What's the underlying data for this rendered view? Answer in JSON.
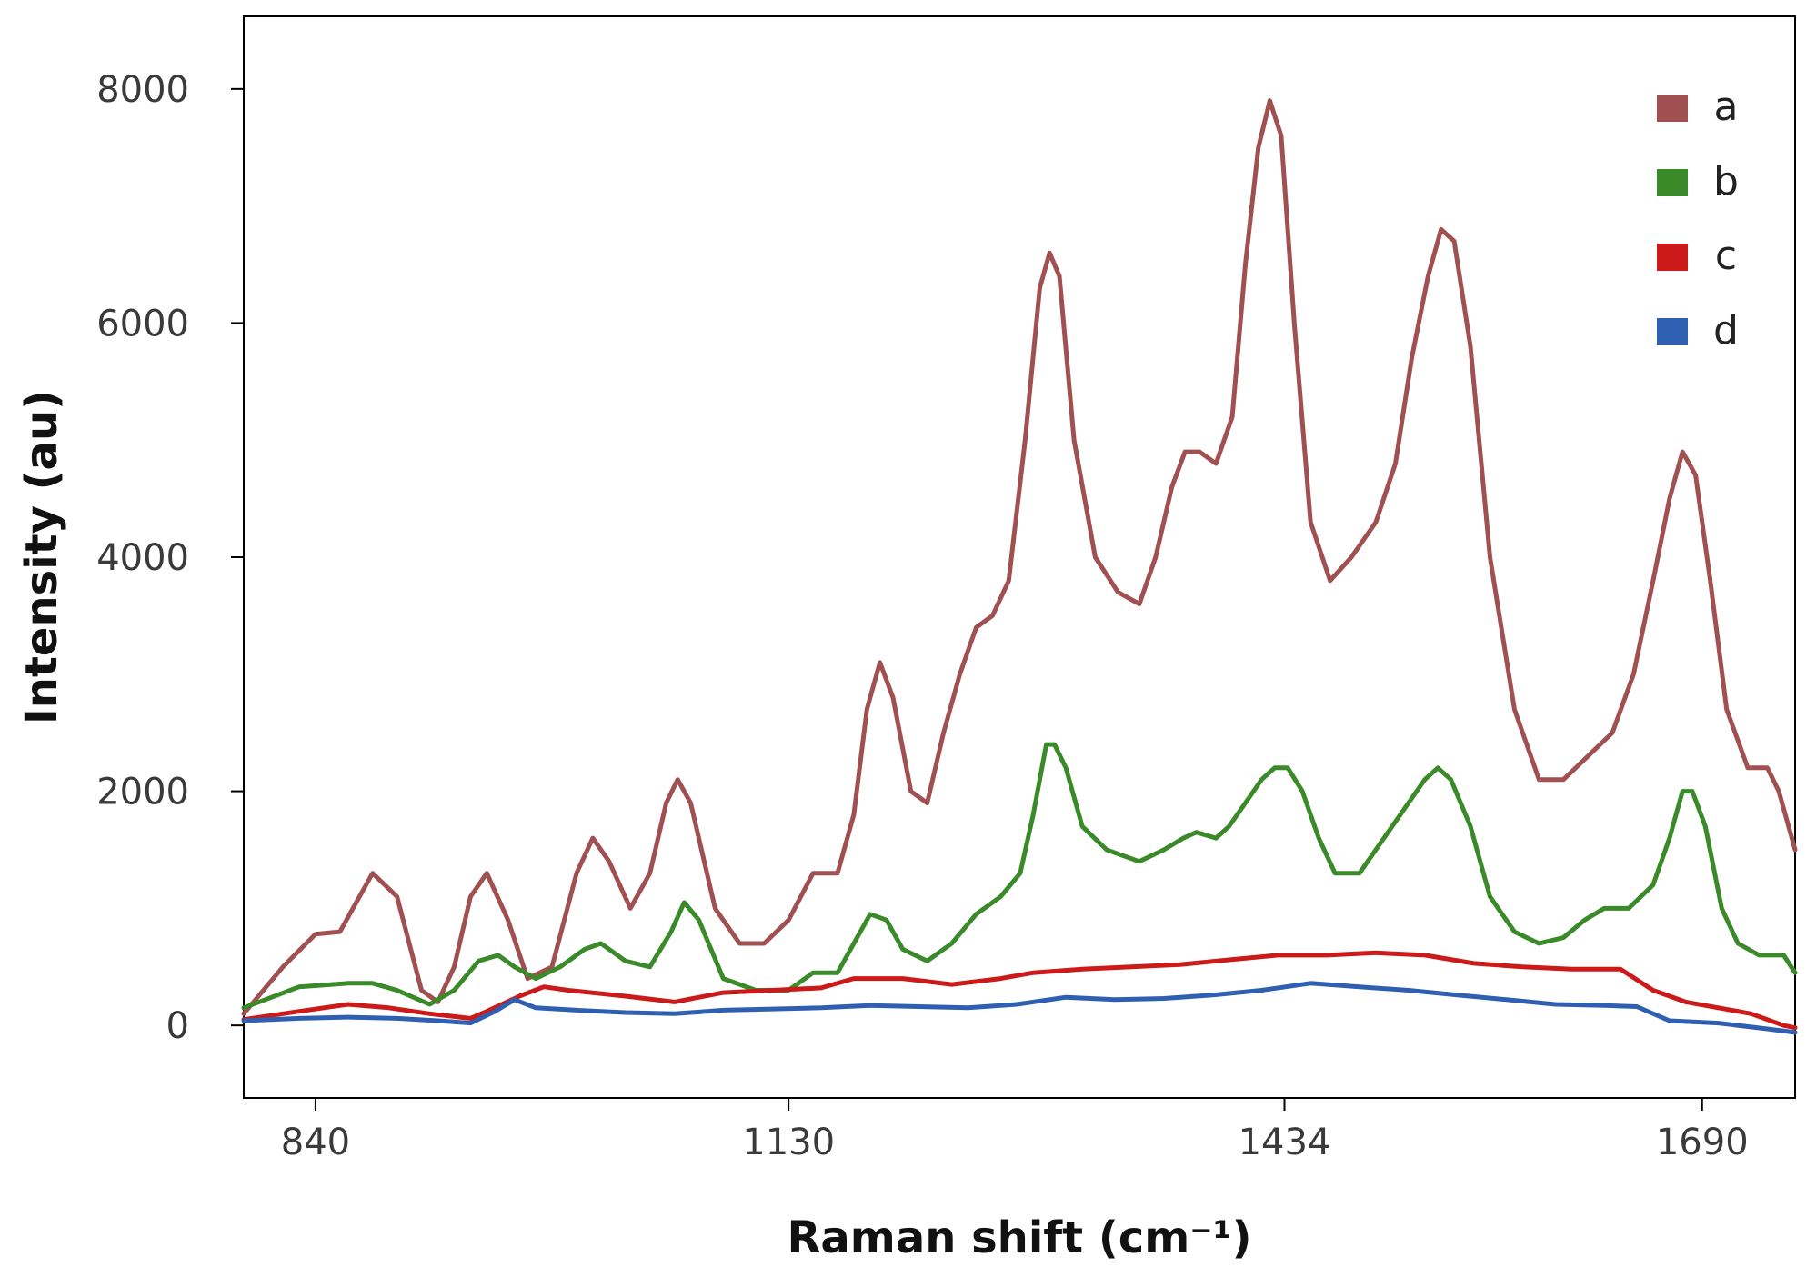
{
  "chart_data": {
    "type": "line",
    "title": "",
    "xlabel": "Raman shift (cm⁻¹)",
    "ylabel": "Intensity (au)",
    "xlim": [
      796,
      1747
    ],
    "ylim": [
      -620,
      8620
    ],
    "x_ticks": [
      840,
      1130,
      1434,
      1690
    ],
    "x_tick_labels": [
      "840",
      "1130",
      "1434",
      "1690"
    ],
    "y_ticks": [
      0,
      2000,
      4000,
      6000,
      8000
    ],
    "y_tick_labels": [
      "0",
      "2000",
      "4000",
      "6000",
      "8000"
    ],
    "grid": false,
    "legend_position": "top-right",
    "series": [
      {
        "name": "a",
        "color": "#a05050",
        "points": [
          [
            796,
            100
          ],
          [
            820,
            500
          ],
          [
            840,
            780
          ],
          [
            855,
            800
          ],
          [
            875,
            1300
          ],
          [
            890,
            1100
          ],
          [
            905,
            300
          ],
          [
            915,
            200
          ],
          [
            925,
            500
          ],
          [
            935,
            1100
          ],
          [
            945,
            1300
          ],
          [
            958,
            900
          ],
          [
            970,
            400
          ],
          [
            985,
            500
          ],
          [
            1000,
            1300
          ],
          [
            1010,
            1600
          ],
          [
            1020,
            1400
          ],
          [
            1033,
            1000
          ],
          [
            1045,
            1300
          ],
          [
            1055,
            1900
          ],
          [
            1062,
            2100
          ],
          [
            1070,
            1900
          ],
          [
            1085,
            1000
          ],
          [
            1100,
            700
          ],
          [
            1115,
            700
          ],
          [
            1130,
            900
          ],
          [
            1145,
            1300
          ],
          [
            1160,
            1300
          ],
          [
            1170,
            1800
          ],
          [
            1178,
            2700
          ],
          [
            1186,
            3100
          ],
          [
            1194,
            2800
          ],
          [
            1205,
            2000
          ],
          [
            1215,
            1900
          ],
          [
            1225,
            2500
          ],
          [
            1235,
            3000
          ],
          [
            1245,
            3400
          ],
          [
            1255,
            3500
          ],
          [
            1265,
            3800
          ],
          [
            1275,
            5000
          ],
          [
            1284,
            6300
          ],
          [
            1290,
            6600
          ],
          [
            1296,
            6400
          ],
          [
            1305,
            5000
          ],
          [
            1318,
            4000
          ],
          [
            1332,
            3700
          ],
          [
            1345,
            3600
          ],
          [
            1355,
            4000
          ],
          [
            1365,
            4600
          ],
          [
            1373,
            4900
          ],
          [
            1382,
            4900
          ],
          [
            1392,
            4800
          ],
          [
            1402,
            5200
          ],
          [
            1410,
            6500
          ],
          [
            1418,
            7500
          ],
          [
            1425,
            7900
          ],
          [
            1432,
            7600
          ],
          [
            1440,
            6000
          ],
          [
            1450,
            4300
          ],
          [
            1462,
            3800
          ],
          [
            1475,
            4000
          ],
          [
            1490,
            4300
          ],
          [
            1502,
            4800
          ],
          [
            1512,
            5700
          ],
          [
            1522,
            6400
          ],
          [
            1530,
            6800
          ],
          [
            1538,
            6700
          ],
          [
            1548,
            5800
          ],
          [
            1560,
            4000
          ],
          [
            1575,
            2700
          ],
          [
            1590,
            2100
          ],
          [
            1605,
            2100
          ],
          [
            1620,
            2300
          ],
          [
            1635,
            2500
          ],
          [
            1648,
            3000
          ],
          [
            1660,
            3800
          ],
          [
            1670,
            4500
          ],
          [
            1678,
            4900
          ],
          [
            1686,
            4700
          ],
          [
            1695,
            3800
          ],
          [
            1705,
            2700
          ],
          [
            1718,
            2200
          ],
          [
            1730,
            2200
          ],
          [
            1737,
            2000
          ],
          [
            1747,
            1500
          ]
        ]
      },
      {
        "name": "b",
        "color": "#3a8a2a",
        "points": [
          [
            796,
            150
          ],
          [
            830,
            330
          ],
          [
            860,
            360
          ],
          [
            875,
            360
          ],
          [
            890,
            300
          ],
          [
            910,
            180
          ],
          [
            925,
            300
          ],
          [
            940,
            550
          ],
          [
            952,
            600
          ],
          [
            962,
            500
          ],
          [
            975,
            400
          ],
          [
            990,
            500
          ],
          [
            1005,
            650
          ],
          [
            1015,
            700
          ],
          [
            1030,
            550
          ],
          [
            1045,
            500
          ],
          [
            1058,
            800
          ],
          [
            1066,
            1050
          ],
          [
            1075,
            900
          ],
          [
            1090,
            400
          ],
          [
            1110,
            300
          ],
          [
            1130,
            300
          ],
          [
            1145,
            450
          ],
          [
            1160,
            450
          ],
          [
            1170,
            700
          ],
          [
            1180,
            950
          ],
          [
            1190,
            900
          ],
          [
            1200,
            650
          ],
          [
            1215,
            550
          ],
          [
            1230,
            700
          ],
          [
            1245,
            950
          ],
          [
            1260,
            1100
          ],
          [
            1272,
            1300
          ],
          [
            1280,
            1800
          ],
          [
            1288,
            2400
          ],
          [
            1293,
            2400
          ],
          [
            1300,
            2200
          ],
          [
            1310,
            1700
          ],
          [
            1325,
            1500
          ],
          [
            1345,
            1400
          ],
          [
            1360,
            1500
          ],
          [
            1372,
            1600
          ],
          [
            1380,
            1650
          ],
          [
            1392,
            1600
          ],
          [
            1400,
            1700
          ],
          [
            1410,
            1900
          ],
          [
            1420,
            2100
          ],
          [
            1428,
            2200
          ],
          [
            1436,
            2200
          ],
          [
            1445,
            2000
          ],
          [
            1455,
            1600
          ],
          [
            1465,
            1300
          ],
          [
            1480,
            1300
          ],
          [
            1495,
            1600
          ],
          [
            1510,
            1900
          ],
          [
            1520,
            2100
          ],
          [
            1528,
            2200
          ],
          [
            1536,
            2100
          ],
          [
            1548,
            1700
          ],
          [
            1560,
            1100
          ],
          [
            1575,
            800
          ],
          [
            1590,
            700
          ],
          [
            1605,
            750
          ],
          [
            1618,
            900
          ],
          [
            1630,
            1000
          ],
          [
            1645,
            1000
          ],
          [
            1660,
            1200
          ],
          [
            1670,
            1600
          ],
          [
            1678,
            2000
          ],
          [
            1684,
            2000
          ],
          [
            1692,
            1700
          ],
          [
            1702,
            1000
          ],
          [
            1712,
            700
          ],
          [
            1725,
            600
          ],
          [
            1740,
            600
          ],
          [
            1747,
            450
          ]
        ]
      },
      {
        "name": "c",
        "color": "#cc1a1a",
        "points": [
          [
            796,
            50
          ],
          [
            830,
            120
          ],
          [
            860,
            180
          ],
          [
            885,
            150
          ],
          [
            910,
            100
          ],
          [
            935,
            60
          ],
          [
            945,
            120
          ],
          [
            965,
            250
          ],
          [
            980,
            330
          ],
          [
            995,
            300
          ],
          [
            1030,
            250
          ],
          [
            1060,
            200
          ],
          [
            1090,
            280
          ],
          [
            1120,
            300
          ],
          [
            1150,
            320
          ],
          [
            1170,
            400
          ],
          [
            1200,
            400
          ],
          [
            1230,
            350
          ],
          [
            1260,
            400
          ],
          [
            1280,
            450
          ],
          [
            1310,
            480
          ],
          [
            1340,
            500
          ],
          [
            1370,
            520
          ],
          [
            1400,
            560
          ],
          [
            1430,
            600
          ],
          [
            1460,
            600
          ],
          [
            1490,
            620
          ],
          [
            1520,
            600
          ],
          [
            1550,
            530
          ],
          [
            1580,
            500
          ],
          [
            1610,
            480
          ],
          [
            1640,
            480
          ],
          [
            1660,
            300
          ],
          [
            1680,
            200
          ],
          [
            1700,
            150
          ],
          [
            1720,
            100
          ],
          [
            1740,
            0
          ],
          [
            1747,
            -20
          ]
        ]
      },
      {
        "name": "d",
        "color": "#2f5fb0",
        "points": [
          [
            796,
            40
          ],
          [
            830,
            60
          ],
          [
            860,
            70
          ],
          [
            890,
            60
          ],
          [
            915,
            40
          ],
          [
            935,
            20
          ],
          [
            950,
            120
          ],
          [
            962,
            220
          ],
          [
            975,
            150
          ],
          [
            1000,
            130
          ],
          [
            1030,
            110
          ],
          [
            1060,
            100
          ],
          [
            1090,
            130
          ],
          [
            1120,
            140
          ],
          [
            1150,
            150
          ],
          [
            1180,
            170
          ],
          [
            1210,
            160
          ],
          [
            1240,
            150
          ],
          [
            1270,
            180
          ],
          [
            1300,
            240
          ],
          [
            1330,
            220
          ],
          [
            1360,
            230
          ],
          [
            1390,
            260
          ],
          [
            1420,
            300
          ],
          [
            1450,
            360
          ],
          [
            1480,
            330
          ],
          [
            1510,
            300
          ],
          [
            1540,
            260
          ],
          [
            1570,
            220
          ],
          [
            1600,
            180
          ],
          [
            1630,
            170
          ],
          [
            1650,
            160
          ],
          [
            1670,
            40
          ],
          [
            1700,
            20
          ],
          [
            1730,
            -30
          ],
          [
            1747,
            -60
          ]
        ]
      }
    ]
  }
}
